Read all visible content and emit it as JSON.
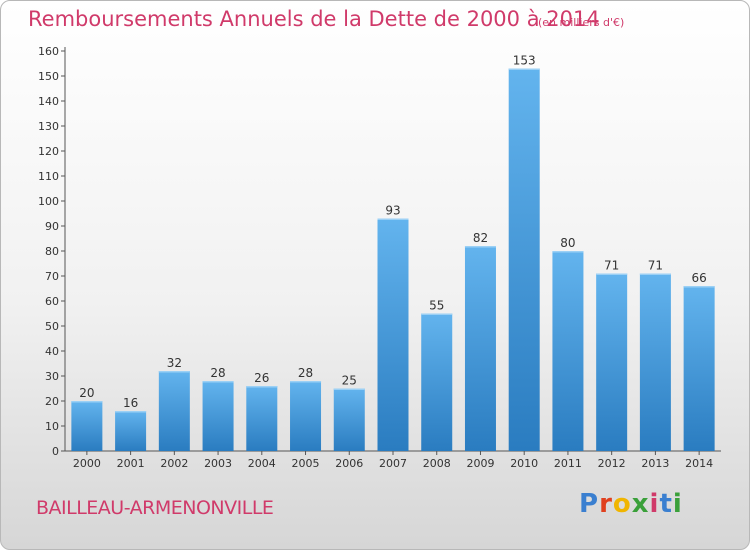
{
  "title": "Remboursements Annuels de la Dette de 2000 à 2014",
  "subtitle": "(en milliers d'€)",
  "commune": "BAILLEAU-ARMENONVILLE",
  "logo": {
    "letters": [
      "P",
      "r",
      "o",
      "x",
      "i",
      "t",
      "i"
    ],
    "colors": [
      "#3a7fd0",
      "#e0401e",
      "#f0b500",
      "#3aa03a",
      "#d03a6a",
      "#3a7fd0",
      "#3aa03a"
    ]
  },
  "colors": {
    "bar_light": "#63b4ee",
    "bar_dark": "#2a7cc0",
    "title": "#d03a6a"
  },
  "chart_data": {
    "type": "bar",
    "title": "Remboursements Annuels de la Dette de 2000 à 2014",
    "categories": [
      "2000",
      "2001",
      "2002",
      "2003",
      "2004",
      "2005",
      "2006",
      "2007",
      "2008",
      "2009",
      "2010",
      "2011",
      "2012",
      "2013",
      "2014"
    ],
    "values": [
      20,
      16,
      32,
      28,
      26,
      28,
      25,
      93,
      55,
      82,
      153,
      80,
      71,
      71,
      66
    ],
    "ylim": [
      0,
      160
    ],
    "yticks": [
      0,
      10,
      20,
      30,
      40,
      50,
      60,
      70,
      80,
      90,
      100,
      110,
      120,
      130,
      140,
      150,
      160
    ],
    "grid": false,
    "data_labels": true
  }
}
